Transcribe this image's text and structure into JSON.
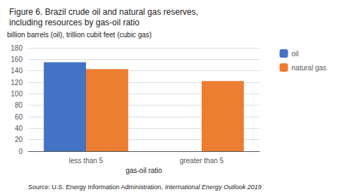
{
  "chart_data": {
    "type": "bar",
    "title": "Figure 6. Brazil crude oil and natural gas reserves,\nincluding resources by gas-oil ratio",
    "ylabel": "billion barrels (oil), trillion cubit feet (cubic gas)",
    "xlabel": "gas-oil ratio",
    "categories": [
      "less than 5",
      "greater than 5"
    ],
    "series": [
      {
        "name": "oil",
        "color": "#4472C4",
        "values": [
          155,
          0
        ]
      },
      {
        "name": "natural gas",
        "color": "#ED7D31",
        "values": [
          143,
          122
        ]
      }
    ],
    "ylim": [
      0,
      180
    ],
    "yticks": [
      0,
      20,
      40,
      60,
      80,
      100,
      120,
      140,
      160,
      180
    ],
    "grid": true,
    "legend": "right",
    "annotations": [
      "Source: U.S. Energy Information Administration,",
      "International Energy Outlook 2019"
    ]
  }
}
